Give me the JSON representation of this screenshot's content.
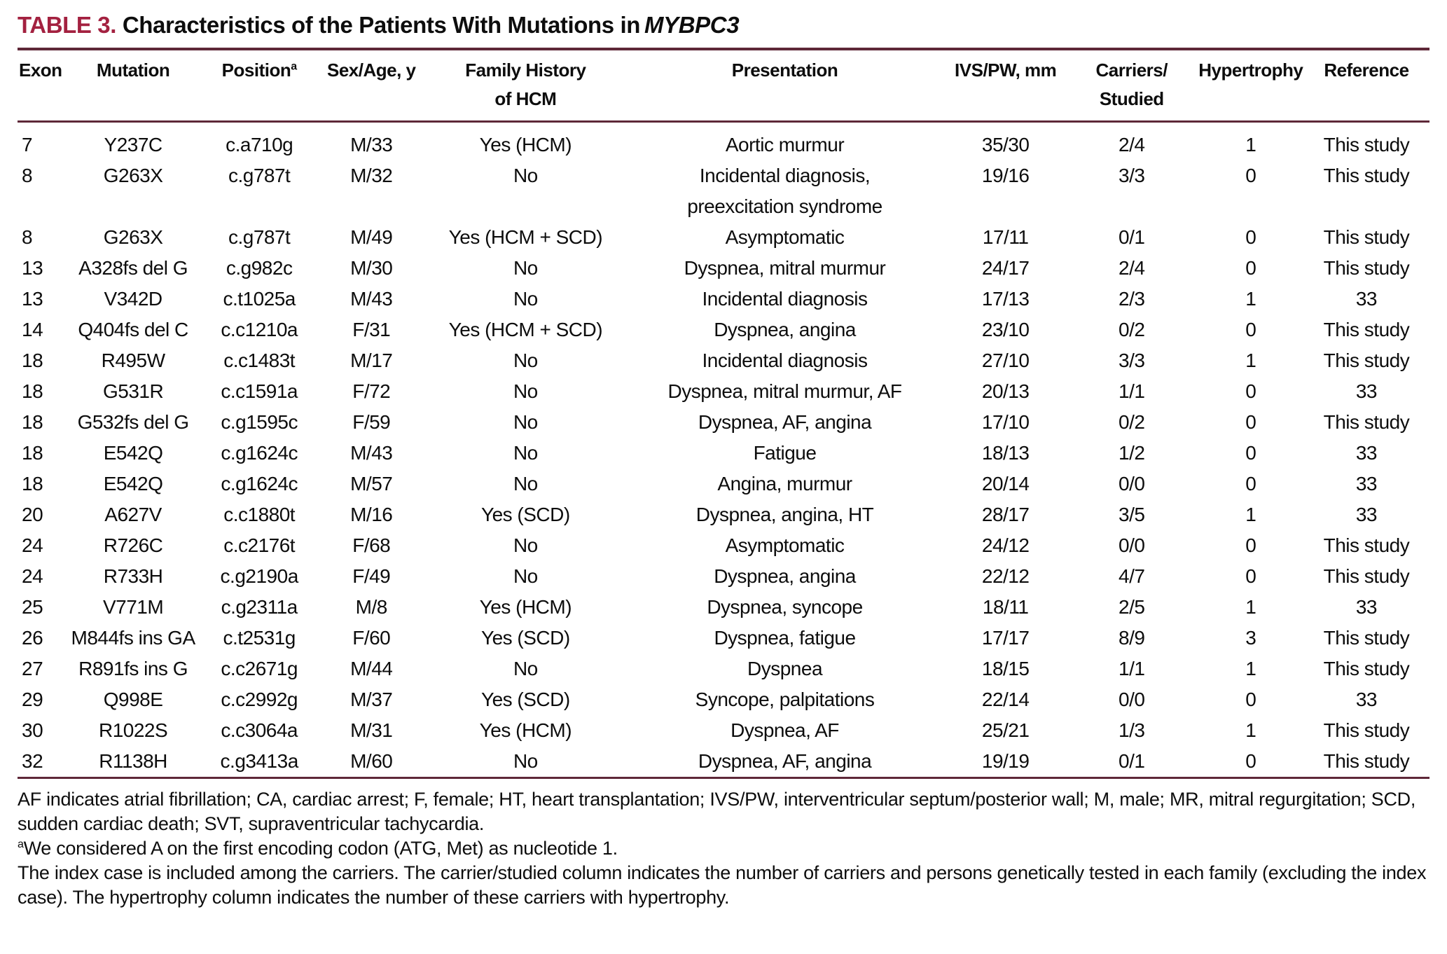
{
  "title": {
    "table_label": "TABLE 3.",
    "text": "Characteristics of the Patients With Mutations in",
    "gene": "MYBPC3"
  },
  "colors": {
    "accent_red": "#a32140",
    "rule_maroon": "#5e2838"
  },
  "table": {
    "headers": [
      {
        "id": "exon",
        "label": "Exon",
        "sup": ""
      },
      {
        "id": "mutation",
        "label": "Mutation",
        "sup": ""
      },
      {
        "id": "position",
        "label": "Position",
        "sup": "a"
      },
      {
        "id": "sex-age",
        "label": "Sex/Age, y",
        "sup": ""
      },
      {
        "id": "family-history",
        "label": "Family History\nof HCM",
        "sup": ""
      },
      {
        "id": "presentation",
        "label": "Presentation",
        "sup": ""
      },
      {
        "id": "ivs-pw",
        "label": "IVS/PW, mm",
        "sup": ""
      },
      {
        "id": "carriers-studied",
        "label": "Carriers/\nStudied",
        "sup": ""
      },
      {
        "id": "hypertrophy",
        "label": "Hypertrophy",
        "sup": ""
      },
      {
        "id": "reference",
        "label": "Reference",
        "sup": ""
      }
    ],
    "rows": [
      [
        "7",
        "Y237C",
        "c.a710g",
        "M/33",
        "Yes (HCM)",
        "Aortic murmur",
        "35/30",
        "2/4",
        "1",
        "This study"
      ],
      [
        "8",
        "G263X",
        "c.g787t",
        "M/32",
        "No",
        "Incidental diagnosis,\npreexcitation syndrome",
        "19/16",
        "3/3",
        "0",
        "This study"
      ],
      [
        "8",
        "G263X",
        "c.g787t",
        "M/49",
        "Yes (HCM + SCD)",
        "Asymptomatic",
        "17/11",
        "0/1",
        "0",
        "This study"
      ],
      [
        "13",
        "A328fs del G",
        "c.g982c",
        "M/30",
        "No",
        "Dyspnea, mitral murmur",
        "24/17",
        "2/4",
        "0",
        "This study"
      ],
      [
        "13",
        "V342D",
        "c.t1025a",
        "M/43",
        "No",
        "Incidental diagnosis",
        "17/13",
        "2/3",
        "1",
        "33"
      ],
      [
        "14",
        "Q404fs del C",
        "c.c1210a",
        "F/31",
        "Yes (HCM + SCD)",
        "Dyspnea, angina",
        "23/10",
        "0/2",
        "0",
        "This study"
      ],
      [
        "18",
        "R495W",
        "c.c1483t",
        "M/17",
        "No",
        "Incidental diagnosis",
        "27/10",
        "3/3",
        "1",
        "This study"
      ],
      [
        "18",
        "G531R",
        "c.c1591a",
        "F/72",
        "No",
        "Dyspnea, mitral murmur, AF",
        "20/13",
        "1/1",
        "0",
        "33"
      ],
      [
        "18",
        "G532fs del G",
        "c.g1595c",
        "F/59",
        "No",
        "Dyspnea, AF, angina",
        "17/10",
        "0/2",
        "0",
        "This study"
      ],
      [
        "18",
        "E542Q",
        "c.g1624c",
        "M/43",
        "No",
        "Fatigue",
        "18/13",
        "1/2",
        "0",
        "33"
      ],
      [
        "18",
        "E542Q",
        "c.g1624c",
        "M/57",
        "No",
        "Angina, murmur",
        "20/14",
        "0/0",
        "0",
        "33"
      ],
      [
        "20",
        "A627V",
        "c.c1880t",
        "M/16",
        "Yes (SCD)",
        "Dyspnea, angina, HT",
        "28/17",
        "3/5",
        "1",
        "33"
      ],
      [
        "24",
        "R726C",
        "c.c2176t",
        "F/68",
        "No",
        "Asymptomatic",
        "24/12",
        "0/0",
        "0",
        "This study"
      ],
      [
        "24",
        "R733H",
        "c.g2190a",
        "F/49",
        "No",
        "Dyspnea, angina",
        "22/12",
        "4/7",
        "0",
        "This study"
      ],
      [
        "25",
        "V771M",
        "c.g2311a",
        "M/8",
        "Yes (HCM)",
        "Dyspnea, syncope",
        "18/11",
        "2/5",
        "1",
        "33"
      ],
      [
        "26",
        "M844fs ins GA",
        "c.t2531g",
        "F/60",
        "Yes (SCD)",
        "Dyspnea, fatigue",
        "17/17",
        "8/9",
        "3",
        "This study"
      ],
      [
        "27",
        "R891fs ins G",
        "c.c2671g",
        "M/44",
        "No",
        "Dyspnea",
        "18/15",
        "1/1",
        "1",
        "This study"
      ],
      [
        "29",
        "Q998E",
        "c.c2992g",
        "M/37",
        "Yes (SCD)",
        "Syncope, palpitations",
        "22/14",
        "0/0",
        "0",
        "33"
      ],
      [
        "30",
        "R1022S",
        "c.c3064a",
        "M/31",
        "Yes (HCM)",
        "Dyspnea, AF",
        "25/21",
        "1/3",
        "1",
        "This study"
      ],
      [
        "32",
        "R1138H",
        "c.g3413a",
        "M/60",
        "No",
        "Dyspnea, AF, angina",
        "19/19",
        "0/1",
        "0",
        "This study"
      ]
    ]
  },
  "footnotes": {
    "abbreviations": "AF indicates atrial fibrillation; CA, cardiac arrest; F, female; HT, heart transplantation; IVS/PW, interventricular septum/posterior wall; M, male; MR, mitral regurgitation; SCD, sudden cardiac death; SVT, supraventricular tachycardia.",
    "note_a_sup": "a",
    "note_a": "We considered A on the first encoding codon (ATG, Met) as nucleotide 1.",
    "note_index": "The index case is included among the carriers. The carrier/studied column indicates the number of carriers and persons genetically tested in each family (excluding the index case). The hypertrophy column indicates the number of these carriers with hypertrophy."
  }
}
